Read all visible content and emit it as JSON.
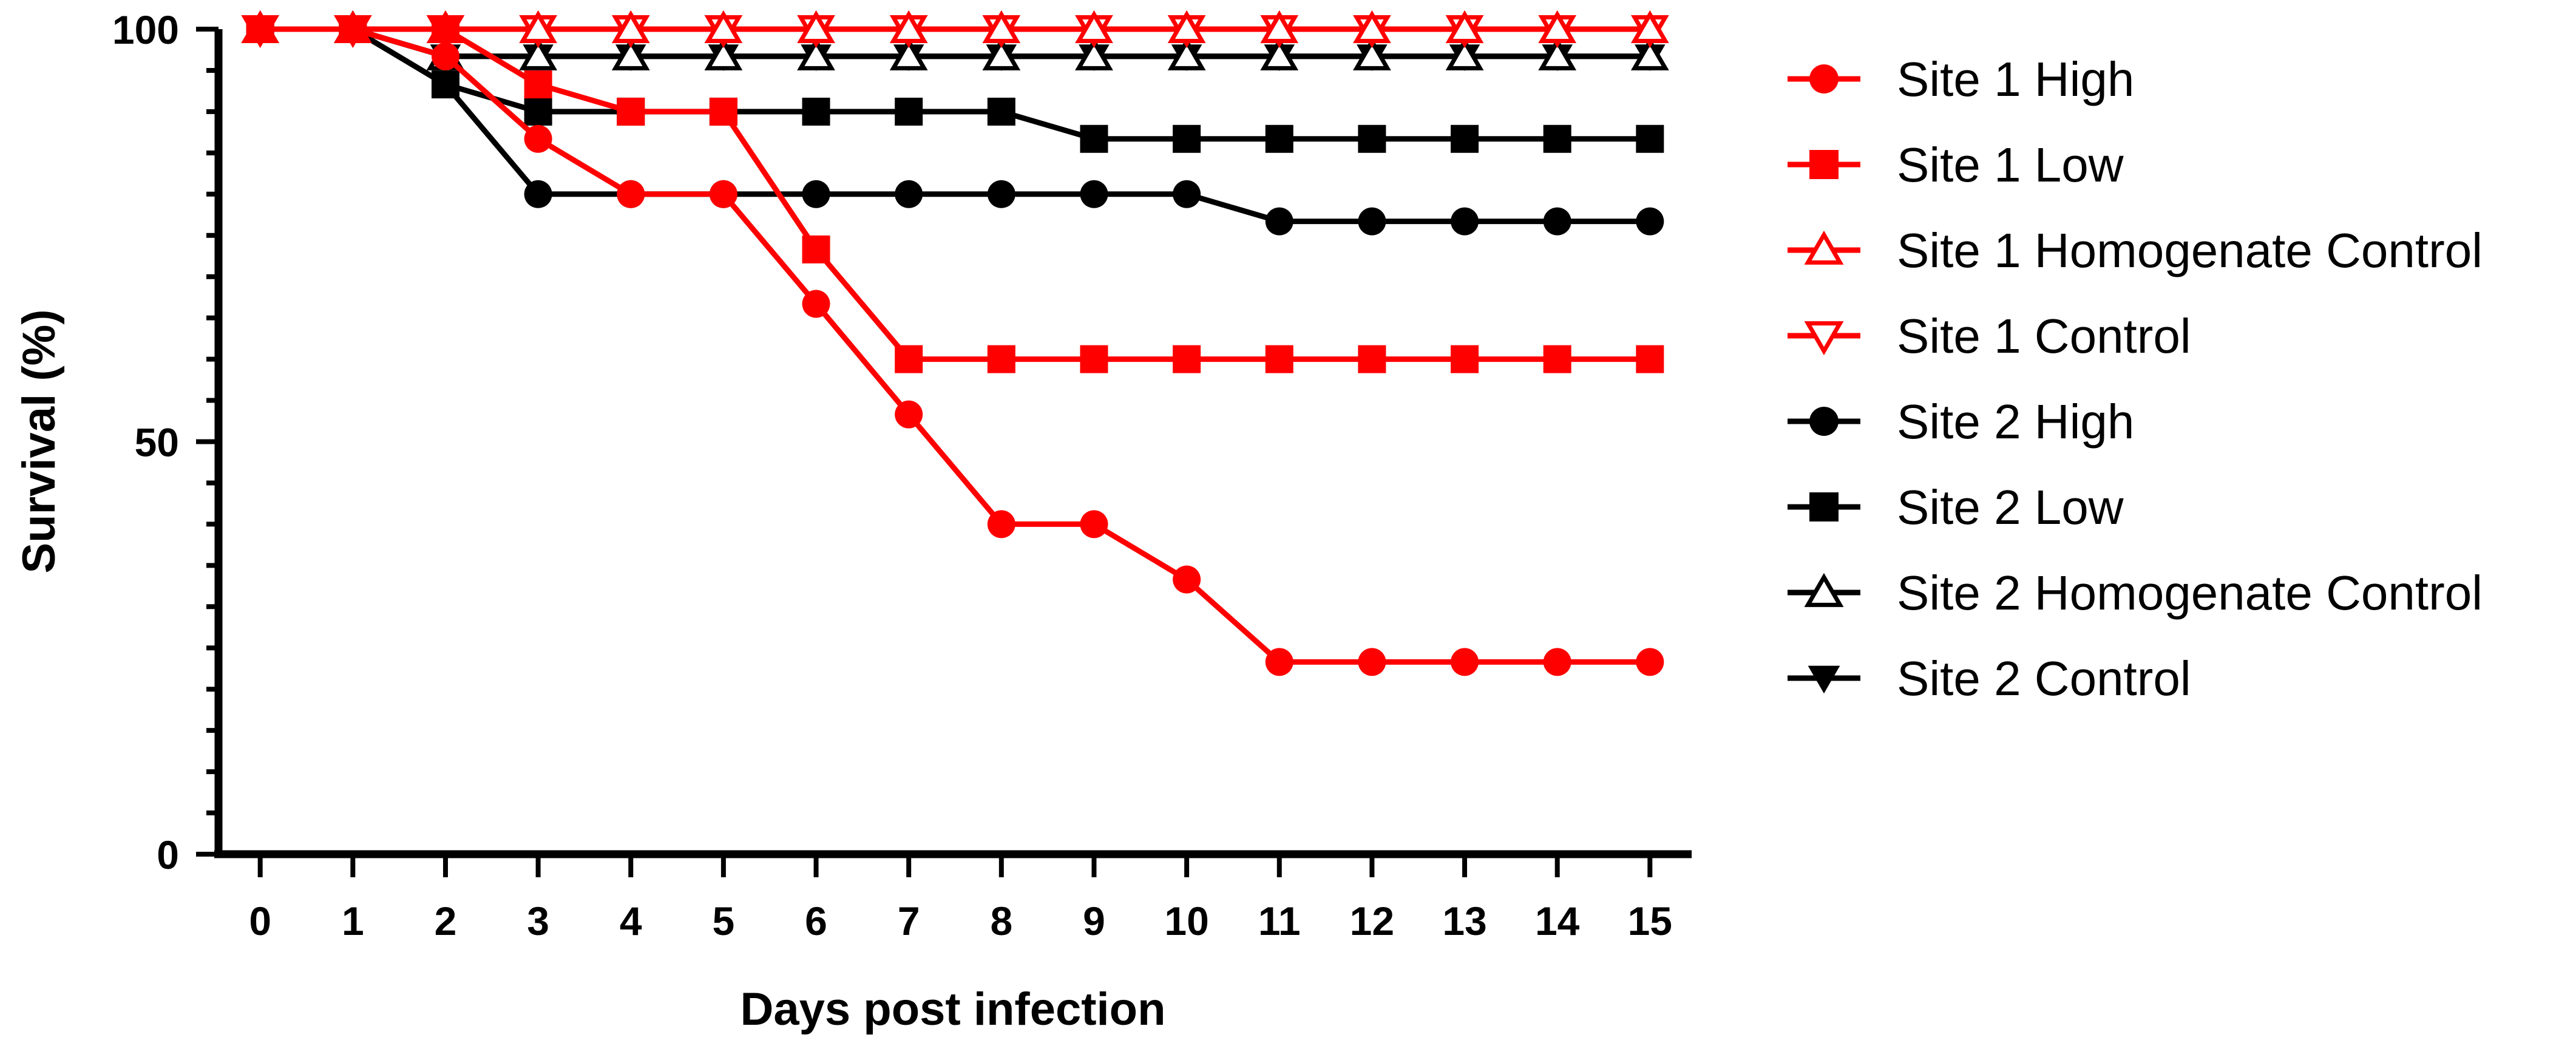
{
  "chart_data": {
    "type": "line",
    "title": "",
    "xlabel": "Days post infection",
    "ylabel": "Survival (%)",
    "x": [
      0,
      1,
      2,
      3,
      4,
      5,
      6,
      7,
      8,
      9,
      10,
      11,
      12,
      13,
      14,
      15
    ],
    "xlim": [
      -0.45,
      15.45
    ],
    "ylim": [
      0,
      100
    ],
    "x_ticks": [
      "0",
      "1",
      "2",
      "3",
      "4",
      "5",
      "6",
      "7",
      "8",
      "9",
      "10",
      "11",
      "12",
      "13",
      "14",
      "15"
    ],
    "y_ticks_labeled": [
      0,
      50,
      100
    ],
    "y_ticks_minor_step": 5,
    "grid": false,
    "legend_position": "right",
    "series": [
      {
        "name": "Site 1 High",
        "color": "#ff0000",
        "marker": "circle",
        "values": [
          100,
          100,
          96.7,
          86.7,
          80,
          80,
          66.7,
          53.3,
          40,
          40,
          33.3,
          23.3,
          23.3,
          23.3,
          23.3,
          23.3
        ]
      },
      {
        "name": "Site 1 Low",
        "color": "#ff0000",
        "marker": "square",
        "values": [
          100,
          100,
          100,
          93.3,
          90,
          90,
          73.3,
          60,
          60,
          60,
          60,
          60,
          60,
          60,
          60,
          60
        ]
      },
      {
        "name": "Site 1 Homogenate Control",
        "color": "#ff0000",
        "marker": "triangle-up-open",
        "values": [
          100,
          100,
          100,
          100,
          100,
          100,
          100,
          100,
          100,
          100,
          100,
          100,
          100,
          100,
          100,
          100
        ]
      },
      {
        "name": "Site 1 Control",
        "color": "#ff0000",
        "marker": "triangle-down-open",
        "values": [
          100,
          100,
          100,
          100,
          100,
          100,
          100,
          100,
          100,
          100,
          100,
          100,
          100,
          100,
          100,
          100
        ]
      },
      {
        "name": "Site 2 High",
        "color": "#000000",
        "marker": "circle",
        "values": [
          100,
          100,
          93.3,
          80,
          80,
          80,
          80,
          80,
          80,
          80,
          80,
          76.7,
          76.7,
          76.7,
          76.7,
          76.7
        ]
      },
      {
        "name": "Site 2 Low",
        "color": "#000000",
        "marker": "square",
        "values": [
          100,
          100,
          93.3,
          90,
          90,
          90,
          90,
          90,
          90,
          86.7,
          86.7,
          86.7,
          86.7,
          86.7,
          86.7,
          86.7
        ]
      },
      {
        "name": "Site 2 Homogenate Control",
        "color": "#000000",
        "marker": "triangle-up-open",
        "values": [
          100,
          100,
          96.7,
          96.7,
          96.7,
          96.7,
          96.7,
          96.7,
          96.7,
          96.7,
          96.7,
          96.7,
          96.7,
          96.7,
          96.7,
          96.7
        ]
      },
      {
        "name": "Site 2 Control",
        "color": "#000000",
        "marker": "triangle-down-filled",
        "values": [
          100,
          100,
          96.7,
          96.7,
          96.7,
          96.7,
          96.7,
          96.7,
          96.7,
          96.7,
          96.7,
          96.7,
          96.7,
          96.7,
          96.7,
          96.7
        ]
      }
    ]
  }
}
